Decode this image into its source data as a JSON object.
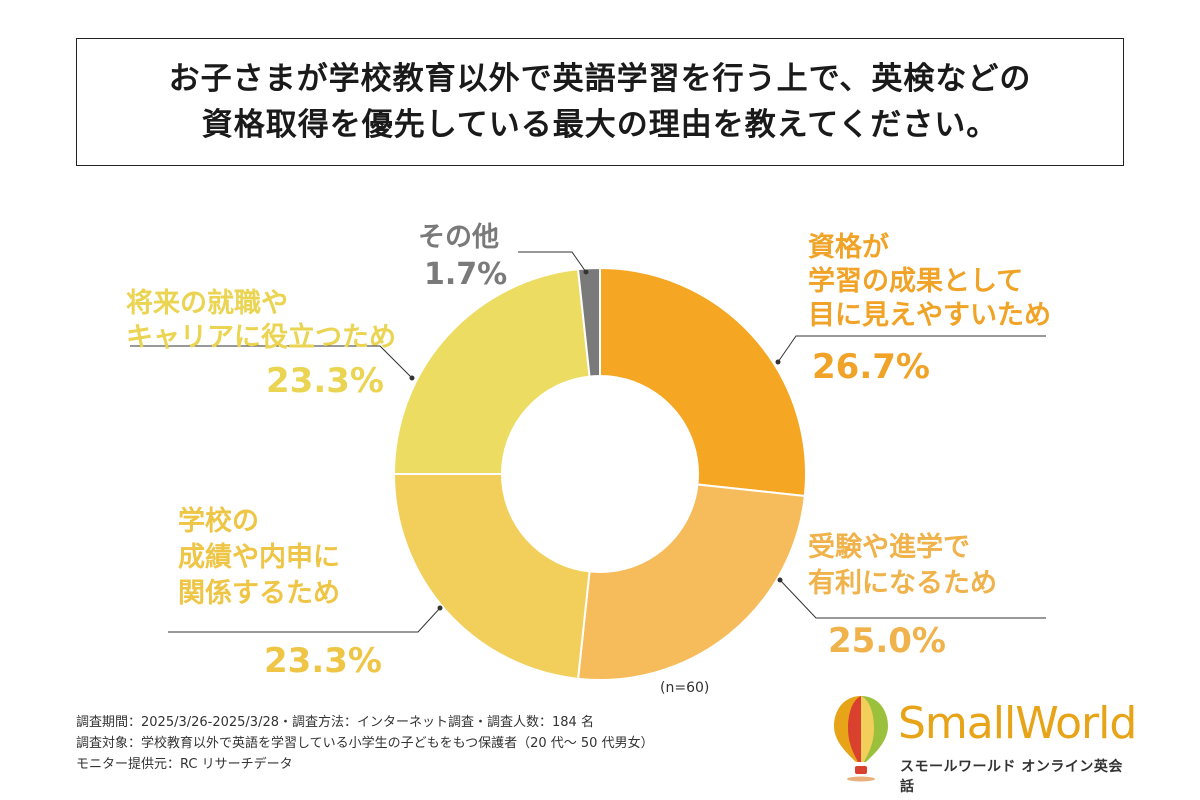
{
  "title": {
    "line1": "お子さまが学校教育以外で英語学習を行う上で、英検などの",
    "line2": "資格取得を優先している最大の理由を教えてください。"
  },
  "chart_data": {
    "type": "pie",
    "donut": true,
    "categories": [
      "資格が学習の成果として目に見えやすいため",
      "受験や進学で有利になるため",
      "学校の成績や内申に関係するため",
      "将来の就職やキャリアに役立つため",
      "その他"
    ],
    "values": [
      26.7,
      25.0,
      23.3,
      23.3,
      1.7
    ],
    "colors": [
      "#f5a623",
      "#f6bc5c",
      "#f2cf5b",
      "#ecdc62",
      "#7a7a7a"
    ],
    "label_colors": [
      "#f0a326",
      "#f0b24a",
      "#efc546",
      "#ead452",
      "#7a7a7a"
    ],
    "label_lines": [
      [
        "資格が",
        "学習の成果として",
        "目に見えやすいため"
      ],
      [
        "受験や進学で",
        "有利になるため"
      ],
      [
        "学校の",
        "成績や内申に",
        "関係するため"
      ],
      [
        "将来の就職や",
        "キャリアに役立つため"
      ],
      [
        "その他"
      ]
    ],
    "value_labels": [
      "26.7%",
      "25.0%",
      "23.3%",
      "23.3%",
      "1.7%"
    ],
    "unit": "%"
  },
  "sample_size": "(n=60)",
  "footnotes": [
    "調査期間：2025/3/26-2025/3/28・調査方法：インターネット調査・調査人数：184 名",
    "調査対象：学校教育以外で英語を学習している小学生の子どもをもつ保護者（20 代～ 50 代男女）",
    "モニター提供元：RC リサーチデータ"
  ],
  "brand": {
    "name": "SmallWorld",
    "subtitle": "スモールワールド オンライン英会話",
    "colors": [
      "#e8a418",
      "#d9412e",
      "#9bc13c",
      "#f2cf5b"
    ]
  }
}
